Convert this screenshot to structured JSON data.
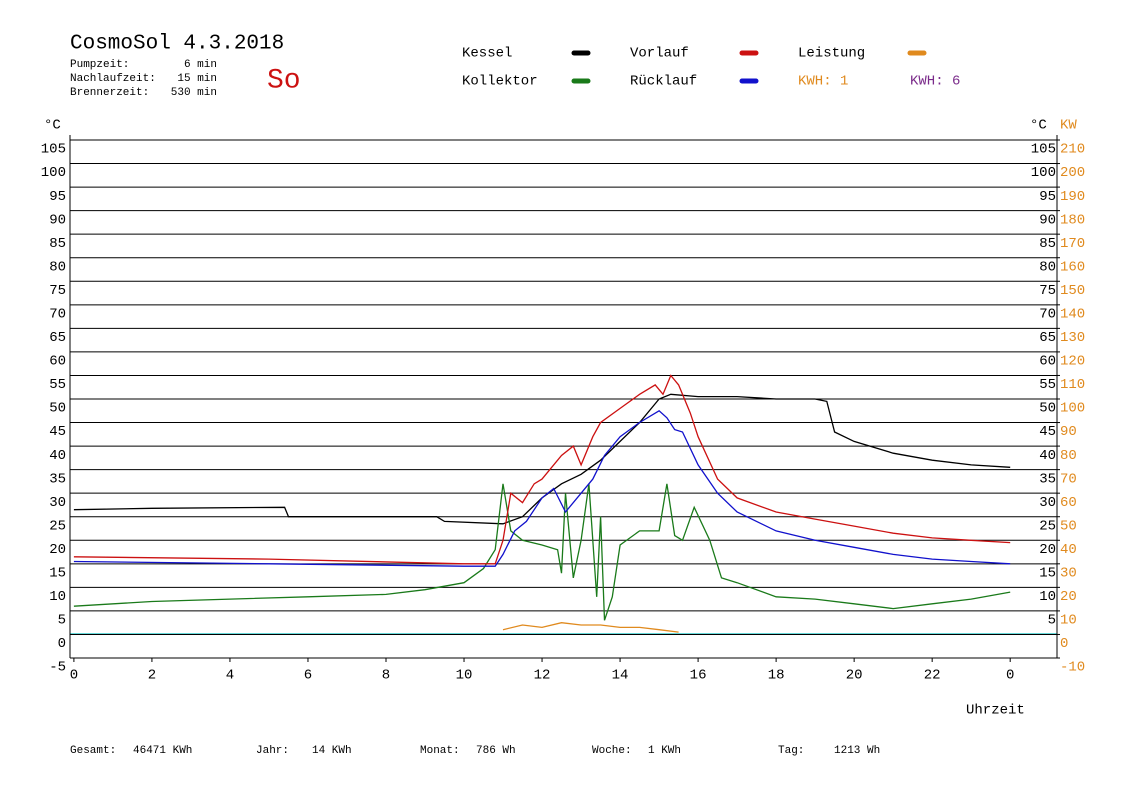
{
  "chart_data": {
    "type": "line",
    "title": "CosmoSol 4.3.2018",
    "day": "So",
    "info": [
      [
        "Pumpzeit:",
        "6 min"
      ],
      [
        "Nachlaufzeit:",
        "15 min"
      ],
      [
        "Brennerzeit:",
        "530 min"
      ]
    ],
    "kwh_labels": [
      {
        "text": "KWH: 1",
        "color": "#e08a1e"
      },
      {
        "text": "KWH: 6",
        "color": "#7a2a8a"
      }
    ],
    "y_label": "°C",
    "y2_label_c": "°C",
    "y2_label": "KW",
    "x_label": "Uhrzeit",
    "xlim": [
      -0.1,
      25.2
    ],
    "xticks": [
      0,
      2,
      4,
      6,
      8,
      10,
      12,
      14,
      16,
      18,
      20,
      22,
      {
        "value": 24,
        "label": "0"
      }
    ],
    "ylim": [
      -5,
      105
    ],
    "yticks": [
      -5,
      0,
      5,
      10,
      15,
      20,
      25,
      30,
      35,
      40,
      45,
      50,
      55,
      60,
      65,
      70,
      75,
      80,
      85,
      90,
      95,
      100,
      105
    ],
    "yticks_right": [
      5,
      10,
      15,
      20,
      25,
      30,
      35,
      40,
      45,
      50,
      55,
      60,
      65,
      70,
      75,
      80,
      85,
      90,
      95,
      100,
      105
    ],
    "y2lim": [
      -10,
      210
    ],
    "y2ticks": [
      -10,
      0,
      10,
      20,
      30,
      40,
      50,
      60,
      70,
      80,
      90,
      100,
      110,
      120,
      130,
      140,
      150,
      160,
      170,
      180,
      190,
      200,
      210
    ],
    "grid": true,
    "series": [
      {
        "name": "Kessel",
        "color": "#000000",
        "x": [
          0,
          2,
          5.4,
          5.5,
          9.3,
          9.5,
          11,
          11.5,
          12,
          12.5,
          13,
          13.5,
          14,
          14.5,
          15,
          15.3,
          16,
          17,
          18,
          19,
          19.3,
          19.5,
          20,
          21,
          22,
          23,
          24
        ],
        "values": [
          26.5,
          26.8,
          27,
          25,
          25,
          24,
          23.5,
          25,
          29,
          32,
          34,
          37,
          41,
          45,
          50,
          51,
          50.5,
          50.5,
          50,
          50,
          49.5,
          43,
          41,
          38.5,
          37,
          36,
          35.5
        ]
      },
      {
        "name": "Kollektor",
        "color": "#1a7a1a",
        "x": [
          0,
          2,
          4,
          6,
          8,
          9,
          10,
          10.5,
          10.8,
          11,
          11.2,
          11.5,
          12,
          12.4,
          12.5,
          12.6,
          12.8,
          13,
          13.2,
          13.4,
          13.5,
          13.6,
          13.8,
          14,
          14.5,
          15,
          15.2,
          15.4,
          15.6,
          15.9,
          16.3,
          16.6,
          17,
          18,
          19,
          20,
          21,
          22,
          23,
          24
        ],
        "values": [
          6,
          7,
          7.5,
          8,
          8.5,
          9.5,
          11,
          14,
          18,
          32,
          22,
          20,
          19,
          18,
          13,
          30,
          12,
          20,
          32,
          8,
          25,
          3,
          8,
          19,
          22,
          22,
          32,
          21,
          20,
          27,
          20,
          12,
          11,
          8,
          7.5,
          6.5,
          5.5,
          6.5,
          7.5,
          9
        ]
      },
      {
        "name": "Vorlauf",
        "color": "#cc1111",
        "x": [
          0,
          5,
          10,
          10.8,
          11,
          11.2,
          11.5,
          11.8,
          12,
          12.5,
          12.8,
          13,
          13.3,
          13.5,
          14,
          14.5,
          14.9,
          15.1,
          15.3,
          15.5,
          15.8,
          16,
          16.5,
          17,
          18,
          19,
          20,
          21,
          22,
          23,
          24
        ],
        "values": [
          16.5,
          16,
          15,
          15,
          20,
          30,
          28,
          32,
          33,
          38,
          40,
          36,
          42,
          45,
          48,
          51,
          53,
          51,
          55,
          53,
          47,
          42,
          33,
          29,
          26,
          24.5,
          23,
          21.5,
          20.5,
          20,
          19.5
        ]
      },
      {
        "name": "Rücklauf",
        "color": "#1111cc",
        "x": [
          0,
          5,
          10,
          10.8,
          11,
          11.3,
          11.6,
          12,
          12.3,
          12.6,
          13,
          13.3,
          13.6,
          14,
          14.5,
          15,
          15.2,
          15.4,
          15.6,
          16,
          16.5,
          17,
          18,
          19,
          20,
          21,
          22,
          23,
          24
        ],
        "values": [
          15.5,
          15,
          14.5,
          14.5,
          17,
          22,
          24,
          29,
          31,
          26,
          30,
          33,
          38,
          42,
          45,
          47.5,
          46,
          43.5,
          43,
          36,
          30,
          26,
          22,
          20,
          18.5,
          17,
          16,
          15.5,
          15
        ]
      },
      {
        "name": "Leistung",
        "color": "#e08a1e",
        "axis": "y2",
        "x": [
          11,
          11.5,
          12,
          12.5,
          13,
          13.5,
          14,
          14.5,
          15,
          15.5
        ],
        "values": [
          2,
          4,
          3,
          5,
          4,
          4,
          3,
          3,
          2,
          1
        ]
      }
    ],
    "footer": [
      [
        "Gesamt:",
        "46471 KWh"
      ],
      [
        "Jahr:",
        "14 KWh"
      ],
      [
        "Monat:",
        "786 Wh"
      ],
      [
        "Woche:",
        "1 KWh"
      ],
      [
        "Tag:",
        "1213 Wh"
      ]
    ]
  }
}
